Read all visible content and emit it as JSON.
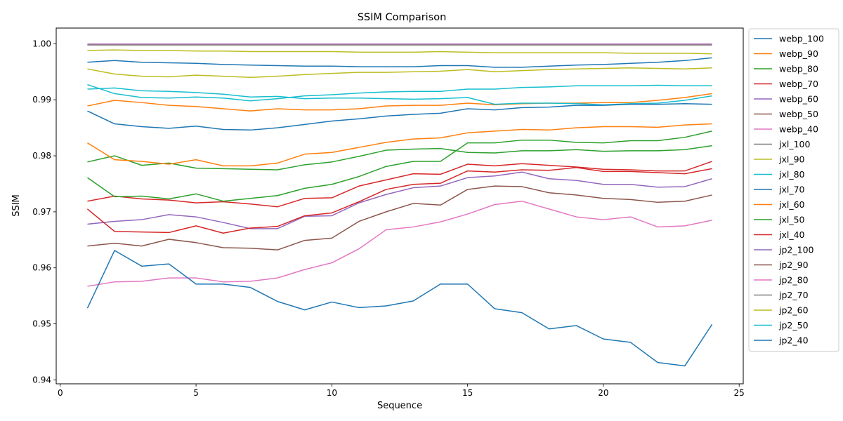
{
  "chart_data": {
    "type": "line",
    "title": "SSIM Comparison",
    "xlabel": "Sequence",
    "ylabel": "SSIM",
    "xlim": [
      -0.15,
      25.15
    ],
    "ylim": [
      0.9393,
      1.0028
    ],
    "xticks": [
      0,
      5,
      10,
      15,
      20,
      25
    ],
    "yticks": [
      0.94,
      0.95,
      0.96,
      0.97,
      0.98,
      0.99,
      1.0
    ],
    "ytick_labels": [
      "0.94",
      "0.95",
      "0.96",
      "0.97",
      "0.98",
      "0.99",
      "1.00"
    ],
    "grid": false,
    "legend_position": "outside-right",
    "x": [
      1,
      2,
      3,
      4,
      5,
      6,
      7,
      8,
      9,
      10,
      11,
      12,
      13,
      14,
      15,
      16,
      17,
      18,
      19,
      20,
      21,
      22,
      23,
      24
    ],
    "series": [
      {
        "name": "webp_100",
        "color": "#1f77b4",
        "values": [
          0.9967,
          0.997,
          0.9967,
          0.9966,
          0.9965,
          0.9963,
          0.9962,
          0.9961,
          0.996,
          0.996,
          0.9959,
          0.9959,
          0.9959,
          0.9961,
          0.9961,
          0.9958,
          0.9958,
          0.996,
          0.9962,
          0.9963,
          0.9965,
          0.9967,
          0.997,
          0.9975
        ]
      },
      {
        "name": "webp_90",
        "color": "#ff7f0e",
        "values": [
          0.9889,
          0.9899,
          0.9895,
          0.989,
          0.9888,
          0.9884,
          0.988,
          0.9884,
          0.9882,
          0.9882,
          0.9884,
          0.9889,
          0.989,
          0.989,
          0.9894,
          0.9891,
          0.9893,
          0.9894,
          0.9894,
          0.9895,
          0.9895,
          0.9899,
          0.9904,
          0.9911
        ]
      },
      {
        "name": "webp_80",
        "color": "#2ca02c",
        "values": [
          0.9789,
          0.98,
          0.9783,
          0.9787,
          0.9778,
          0.9777,
          0.9776,
          0.9775,
          0.9784,
          0.9789,
          0.9799,
          0.981,
          0.9812,
          0.9813,
          0.9806,
          0.9805,
          0.9809,
          0.9809,
          0.9811,
          0.9808,
          0.9809,
          0.9809,
          0.9811,
          0.9818
        ]
      },
      {
        "name": "webp_70",
        "color": "#d62728",
        "values": [
          0.9719,
          0.9728,
          0.9723,
          0.9721,
          0.9716,
          0.9718,
          0.9714,
          0.9709,
          0.9724,
          0.9725,
          0.9746,
          0.9757,
          0.9768,
          0.9767,
          0.9785,
          0.9782,
          0.9786,
          0.9783,
          0.978,
          0.9776,
          0.9775,
          0.9773,
          0.9773,
          0.979
        ]
      },
      {
        "name": "webp_60",
        "color": "#9467bd",
        "values": [
          0.9678,
          0.9683,
          0.9686,
          0.9695,
          0.9691,
          0.9681,
          0.967,
          0.967,
          0.9692,
          0.9693,
          0.9716,
          0.9731,
          0.9743,
          0.9746,
          0.9761,
          0.9764,
          0.9771,
          0.9759,
          0.9756,
          0.9749,
          0.9749,
          0.9744,
          0.9745,
          0.9759
        ]
      },
      {
        "name": "webp_50",
        "color": "#8c564b",
        "values": [
          0.9639,
          0.9644,
          0.9639,
          0.9651,
          0.9645,
          0.9636,
          0.9635,
          0.9632,
          0.9649,
          0.9653,
          0.9683,
          0.97,
          0.9715,
          0.9712,
          0.974,
          0.9746,
          0.9745,
          0.9734,
          0.973,
          0.9724,
          0.9722,
          0.9717,
          0.9719,
          0.973
        ]
      },
      {
        "name": "webp_40",
        "color": "#e377c2",
        "values": [
          0.9567,
          0.9575,
          0.9576,
          0.9582,
          0.9582,
          0.9575,
          0.9576,
          0.9582,
          0.9597,
          0.9609,
          0.9634,
          0.9668,
          0.9673,
          0.9682,
          0.9696,
          0.9713,
          0.9719,
          0.9705,
          0.9691,
          0.9686,
          0.9691,
          0.9673,
          0.9675,
          0.9685
        ]
      },
      {
        "name": "jxl_100",
        "color": "#7f7f7f",
        "values": [
          0.9999,
          0.9999,
          0.9999,
          0.9999,
          0.9999,
          0.9999,
          0.9999,
          0.9999,
          0.9999,
          0.9999,
          0.9999,
          0.9999,
          0.9999,
          0.9999,
          0.9999,
          0.9999,
          0.9999,
          0.9999,
          0.9999,
          0.9999,
          0.9999,
          0.9999,
          0.9999,
          0.9999
        ]
      },
      {
        "name": "jxl_90",
        "color": "#bcbd22",
        "values": [
          0.9988,
          0.9989,
          0.9988,
          0.9988,
          0.9987,
          0.9987,
          0.9986,
          0.9986,
          0.9986,
          0.9986,
          0.9985,
          0.9985,
          0.9985,
          0.9986,
          0.9985,
          0.9984,
          0.9984,
          0.9984,
          0.9984,
          0.9984,
          0.9983,
          0.9983,
          0.9983,
          0.9982
        ]
      },
      {
        "name": "jxl_80",
        "color": "#17becf",
        "values": [
          0.9919,
          0.9921,
          0.9916,
          0.9915,
          0.9913,
          0.991,
          0.9905,
          0.9906,
          0.9902,
          0.9903,
          0.9903,
          0.9902,
          0.9901,
          0.9902,
          0.9904,
          0.9892,
          0.9894,
          0.9894,
          0.9893,
          0.9891,
          0.9893,
          0.9894,
          0.9899,
          0.9907
        ]
      },
      {
        "name": "jxl_70",
        "color": "#1f77b4",
        "values": [
          0.988,
          0.9857,
          0.9852,
          0.9849,
          0.9853,
          0.9847,
          0.9846,
          0.985,
          0.9856,
          0.9862,
          0.9866,
          0.9871,
          0.9874,
          0.9876,
          0.9884,
          0.9882,
          0.9886,
          0.9887,
          0.989,
          0.989,
          0.9892,
          0.9892,
          0.9893,
          0.9892
        ]
      },
      {
        "name": "jp2_40",
        "color": "#1f77b4",
        "values": [
          0.9528,
          0.9631,
          0.9603,
          0.9607,
          0.9571,
          0.9571,
          0.9565,
          0.954,
          0.9525,
          0.9539,
          0.9529,
          0.9532,
          0.9541,
          0.9571,
          0.9571,
          0.9527,
          0.952,
          0.9491,
          0.9497,
          0.9473,
          0.9467,
          0.9431,
          0.9425,
          0.9499
        ]
      },
      {
        "name": "jxl_60",
        "color": "#ff7f0e",
        "values": [
          0.9823,
          0.9793,
          0.979,
          0.9785,
          0.9793,
          0.9782,
          0.9782,
          0.9787,
          0.9803,
          0.9806,
          0.9815,
          0.9824,
          0.983,
          0.9832,
          0.9841,
          0.9844,
          0.9847,
          0.9846,
          0.985,
          0.9852,
          0.9852,
          0.9851,
          0.9855,
          0.9857
        ]
      },
      {
        "name": "jxl_50",
        "color": "#2ca02c",
        "values": [
          0.9761,
          0.9727,
          0.9728,
          0.9723,
          0.9732,
          0.9719,
          0.9724,
          0.9729,
          0.9742,
          0.9749,
          0.9763,
          0.9781,
          0.979,
          0.979,
          0.9823,
          0.9823,
          0.9828,
          0.9828,
          0.9824,
          0.9823,
          0.9827,
          0.9827,
          0.9833,
          0.9844
        ]
      },
      {
        "name": "jxl_40",
        "color": "#d62728",
        "values": [
          0.9705,
          0.9665,
          0.9664,
          0.9663,
          0.9675,
          0.9662,
          0.9671,
          0.9674,
          0.9693,
          0.9698,
          0.9718,
          0.974,
          0.9749,
          0.9751,
          0.9773,
          0.9771,
          0.9775,
          0.9774,
          0.9779,
          0.9772,
          0.9772,
          0.977,
          0.9768,
          0.9777
        ]
      },
      {
        "name": "jp2_100",
        "color": "#9467bd",
        "values": [
          0.99995,
          0.99995,
          0.99995,
          0.99995,
          0.99995,
          0.99995,
          0.99995,
          0.99995,
          0.99995,
          0.99995,
          0.99995,
          0.99995,
          0.99995,
          0.99995,
          0.99995,
          0.99995,
          0.99995,
          0.99995,
          0.99995,
          0.99995,
          0.99995,
          0.99995,
          0.99995,
          0.99995
        ]
      },
      {
        "name": "jp2_90",
        "color": "#8c564b",
        "values": [
          0.9998,
          0.9998,
          0.9998,
          0.9998,
          0.9998,
          0.9998,
          0.9998,
          0.9998,
          0.9998,
          0.9998,
          0.9998,
          0.9998,
          0.9998,
          0.9998,
          0.9998,
          0.9998,
          0.9998,
          0.9998,
          0.9998,
          0.9998,
          0.9998,
          0.9998,
          0.9998,
          0.9998
        ]
      },
      {
        "name": "jp2_80",
        "color": "#e377c2",
        "values": [
          0.99985,
          0.99985,
          0.99985,
          0.99985,
          0.99985,
          0.99985,
          0.99985,
          0.99985,
          0.99985,
          0.99985,
          0.99985,
          0.99985,
          0.99985,
          0.99985,
          0.99985,
          0.99985,
          0.99985,
          0.99985,
          0.99985,
          0.99985,
          0.99985,
          0.99985,
          0.99985,
          0.99985
        ]
      },
      {
        "name": "jp2_70",
        "color": "#7f7f7f",
        "values": [
          0.9998,
          0.9998,
          0.9998,
          0.9998,
          0.9998,
          0.9998,
          0.9998,
          0.9998,
          0.9998,
          0.9998,
          0.9998,
          0.9998,
          0.9998,
          0.9998,
          0.9998,
          0.9998,
          0.9998,
          0.9998,
          0.9998,
          0.9998,
          0.9998,
          0.9998,
          0.9998,
          0.9998
        ]
      },
      {
        "name": "jp2_60",
        "color": "#bcbd22",
        "values": [
          0.9955,
          0.9946,
          0.9942,
          0.9941,
          0.9944,
          0.9942,
          0.994,
          0.9942,
          0.9945,
          0.9947,
          0.9949,
          0.9949,
          0.995,
          0.9951,
          0.9954,
          0.995,
          0.9952,
          0.9954,
          0.9955,
          0.9956,
          0.9957,
          0.9956,
          0.9955,
          0.9957
        ]
      },
      {
        "name": "jp2_50",
        "color": "#17becf",
        "values": [
          0.9927,
          0.9911,
          0.9904,
          0.9903,
          0.9905,
          0.9903,
          0.9898,
          0.9902,
          0.9907,
          0.9909,
          0.9912,
          0.9914,
          0.9915,
          0.9915,
          0.9919,
          0.9919,
          0.9922,
          0.9923,
          0.9925,
          0.9925,
          0.9925,
          0.9926,
          0.9925,
          0.9925
        ]
      }
    ],
    "legend_order": [
      "webp_100",
      "webp_90",
      "webp_80",
      "webp_70",
      "webp_60",
      "webp_50",
      "webp_40",
      "jxl_100",
      "jxl_90",
      "jxl_80",
      "jxl_70",
      "jxl_60",
      "jxl_50",
      "jxl_40",
      "jp2_100",
      "jp2_90",
      "jp2_80",
      "jp2_70",
      "jp2_60",
      "jp2_50",
      "jp2_40"
    ]
  }
}
